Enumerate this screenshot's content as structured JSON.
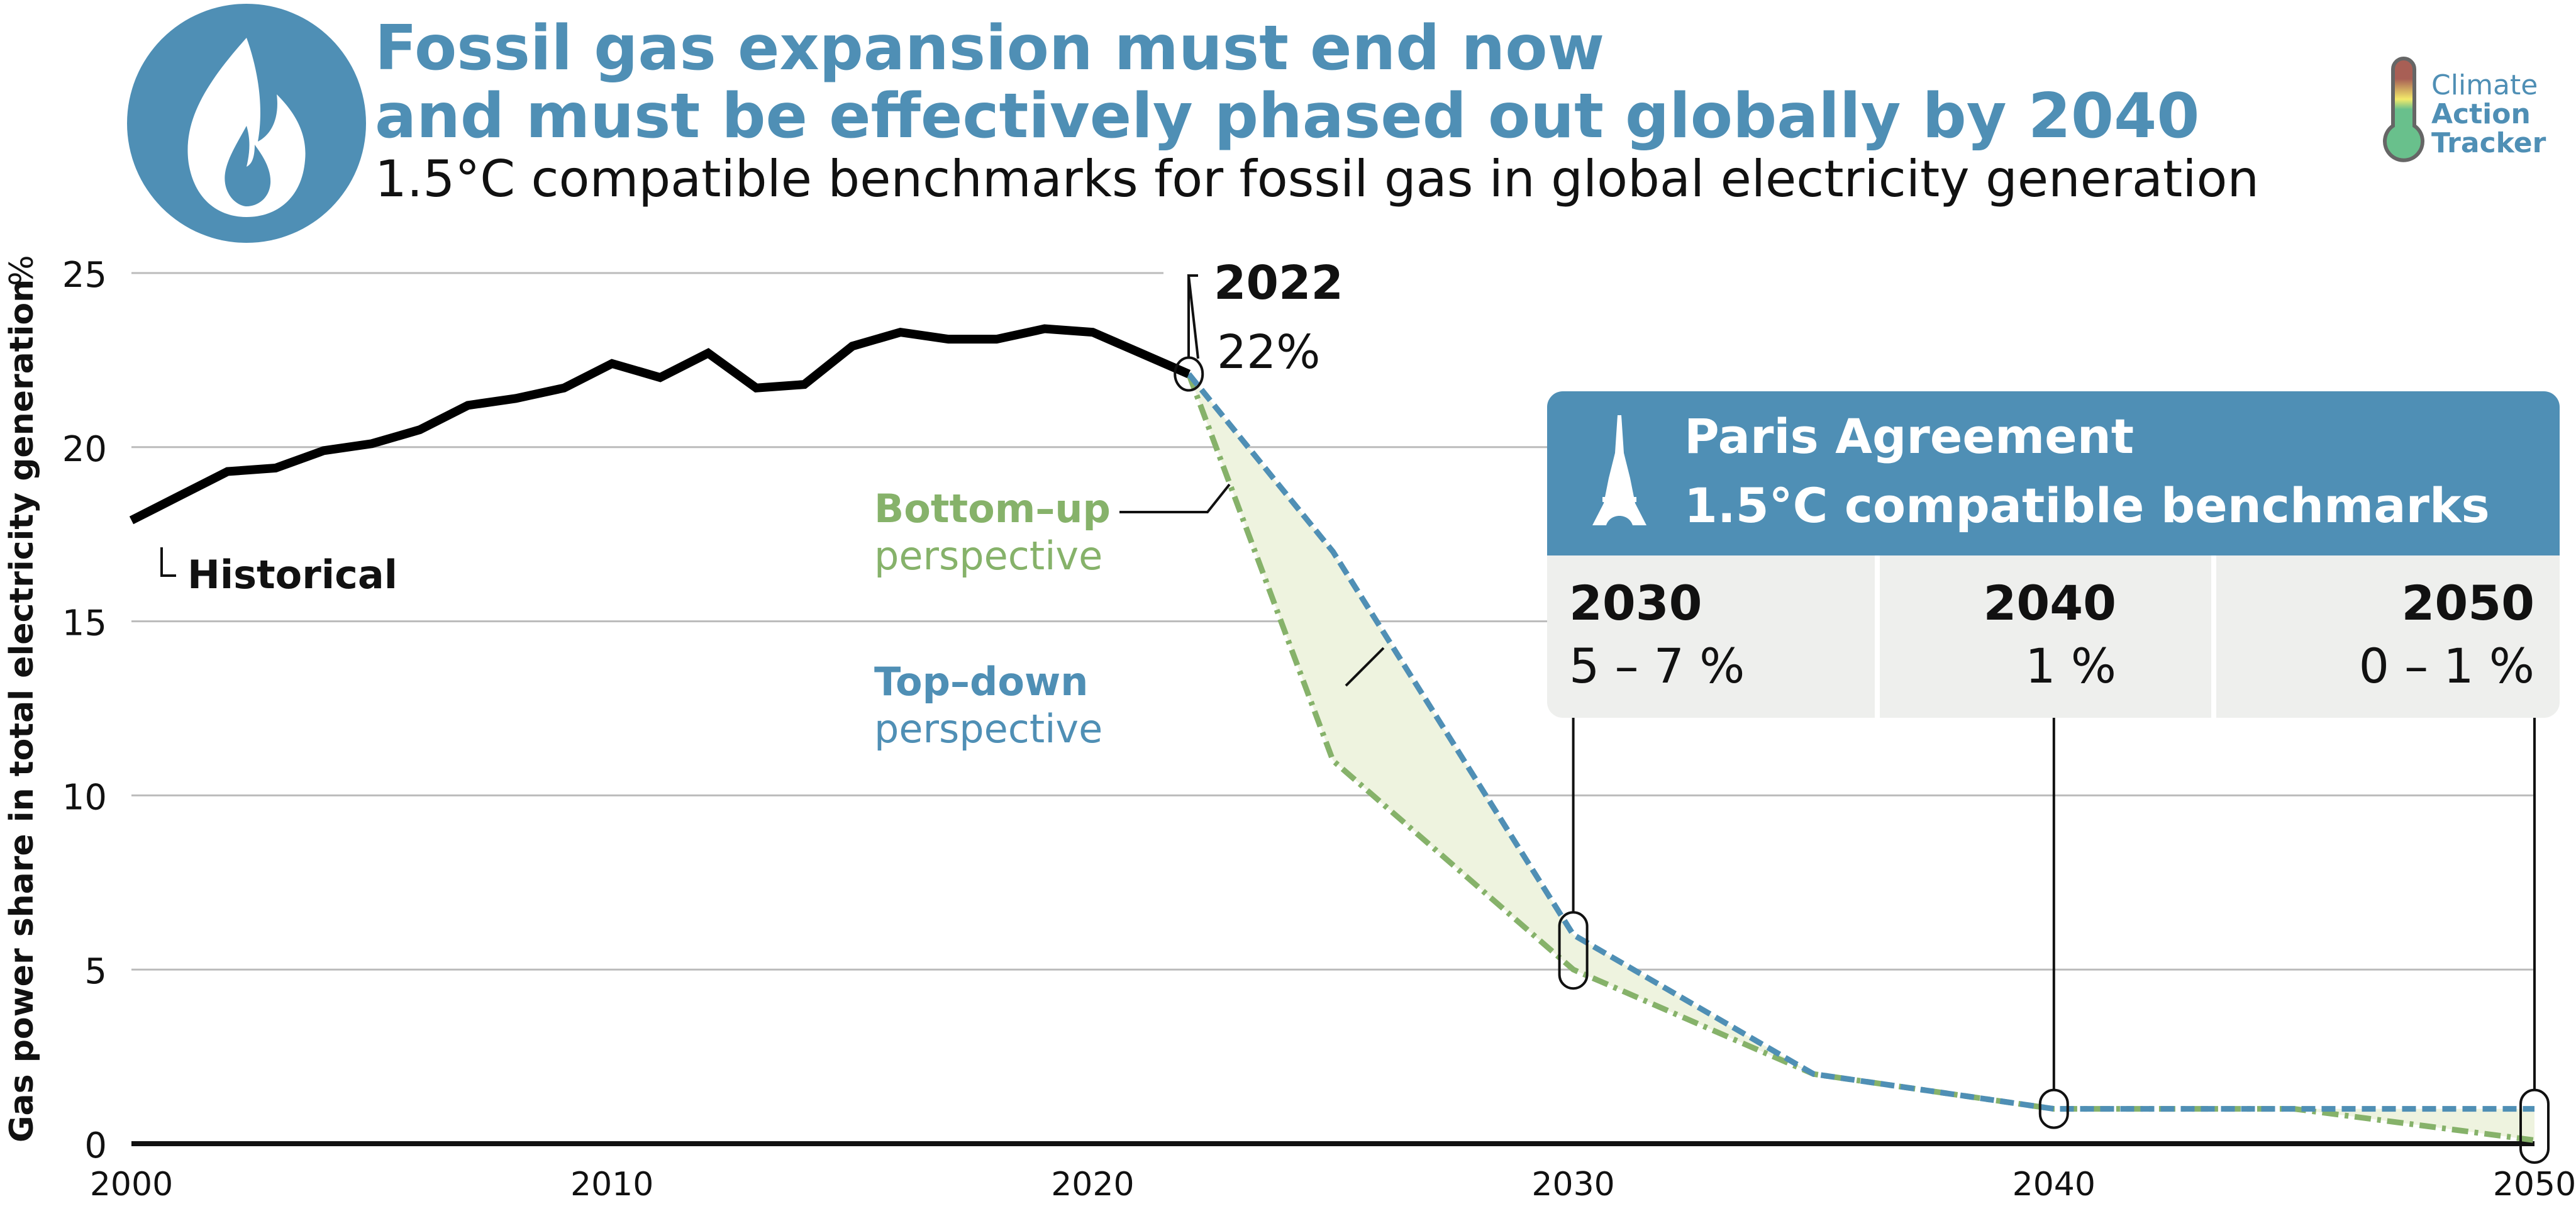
{
  "header": {
    "title_line1": "Fossil gas expansion must end now",
    "title_line2": "and must be effectively phased out globally by 2040",
    "subtitle": "1.5°C compatible benchmarks for fossil gas in global electricity generation",
    "icon": "flame-icon",
    "accent_color": "#4f8fb5"
  },
  "logo": {
    "line1": "Climate",
    "line2": "Action",
    "line3": "Tracker"
  },
  "chart_data": {
    "type": "line",
    "title": "1.5°C compatible benchmarks for fossil gas in global electricity generation",
    "ylabel": "Gas power share in total electricity generation",
    "yunit": "%",
    "xlim": [
      2000,
      2050
    ],
    "ylim": [
      0,
      25
    ],
    "xticks": [
      2000,
      2010,
      2020,
      2030,
      2040,
      2050
    ],
    "yticks": [
      0,
      5,
      10,
      15,
      20,
      25
    ],
    "grid": true,
    "series": [
      {
        "name": "Historical",
        "color": "#000000",
        "style": "solid",
        "x": [
          2000,
          2001,
          2002,
          2003,
          2004,
          2005,
          2006,
          2007,
          2008,
          2009,
          2010,
          2011,
          2012,
          2013,
          2014,
          2015,
          2016,
          2017,
          2018,
          2019,
          2020,
          2021,
          2022
        ],
        "y": [
          17.9,
          18.6,
          19.3,
          19.4,
          19.9,
          20.1,
          20.5,
          21.2,
          21.4,
          21.7,
          22.4,
          22.0,
          22.7,
          21.7,
          21.8,
          22.9,
          23.3,
          23.1,
          23.1,
          23.4,
          23.3,
          22.7,
          22.1
        ]
      },
      {
        "name": "Top–down perspective",
        "color": "#4f8fb5",
        "style": "dashed",
        "x": [
          2022,
          2025,
          2030,
          2035,
          2040,
          2050
        ],
        "y": [
          22.1,
          17,
          6,
          2,
          1,
          1
        ]
      },
      {
        "name": "Bottom–up perspective",
        "color": "#86b26a",
        "style": "dash-dot",
        "x": [
          2022,
          2025,
          2030,
          2035,
          2040,
          2045,
          2050
        ],
        "y": [
          22.1,
          11,
          5,
          2,
          1,
          1,
          0.1
        ]
      }
    ],
    "range_fill_color": "#eef3df",
    "annotations": {
      "historical": "Historical",
      "bottom_up_bold": "Bottom–up",
      "bottom_up_sub": "perspective",
      "top_down_bold": "Top–down",
      "top_down_sub": "perspective",
      "year_2022": "2022",
      "value_2022": "22%"
    }
  },
  "benchmarks": {
    "header_line1": "Paris Agreement",
    "header_line2": "1.5°C compatible benchmarks",
    "icon": "eiffel-tower-icon",
    "items": [
      {
        "year": "2030",
        "value": "5 – 7 %"
      },
      {
        "year": "2040",
        "value": "1 %"
      },
      {
        "year": "2050",
        "value": "0 – 1 %"
      }
    ]
  }
}
